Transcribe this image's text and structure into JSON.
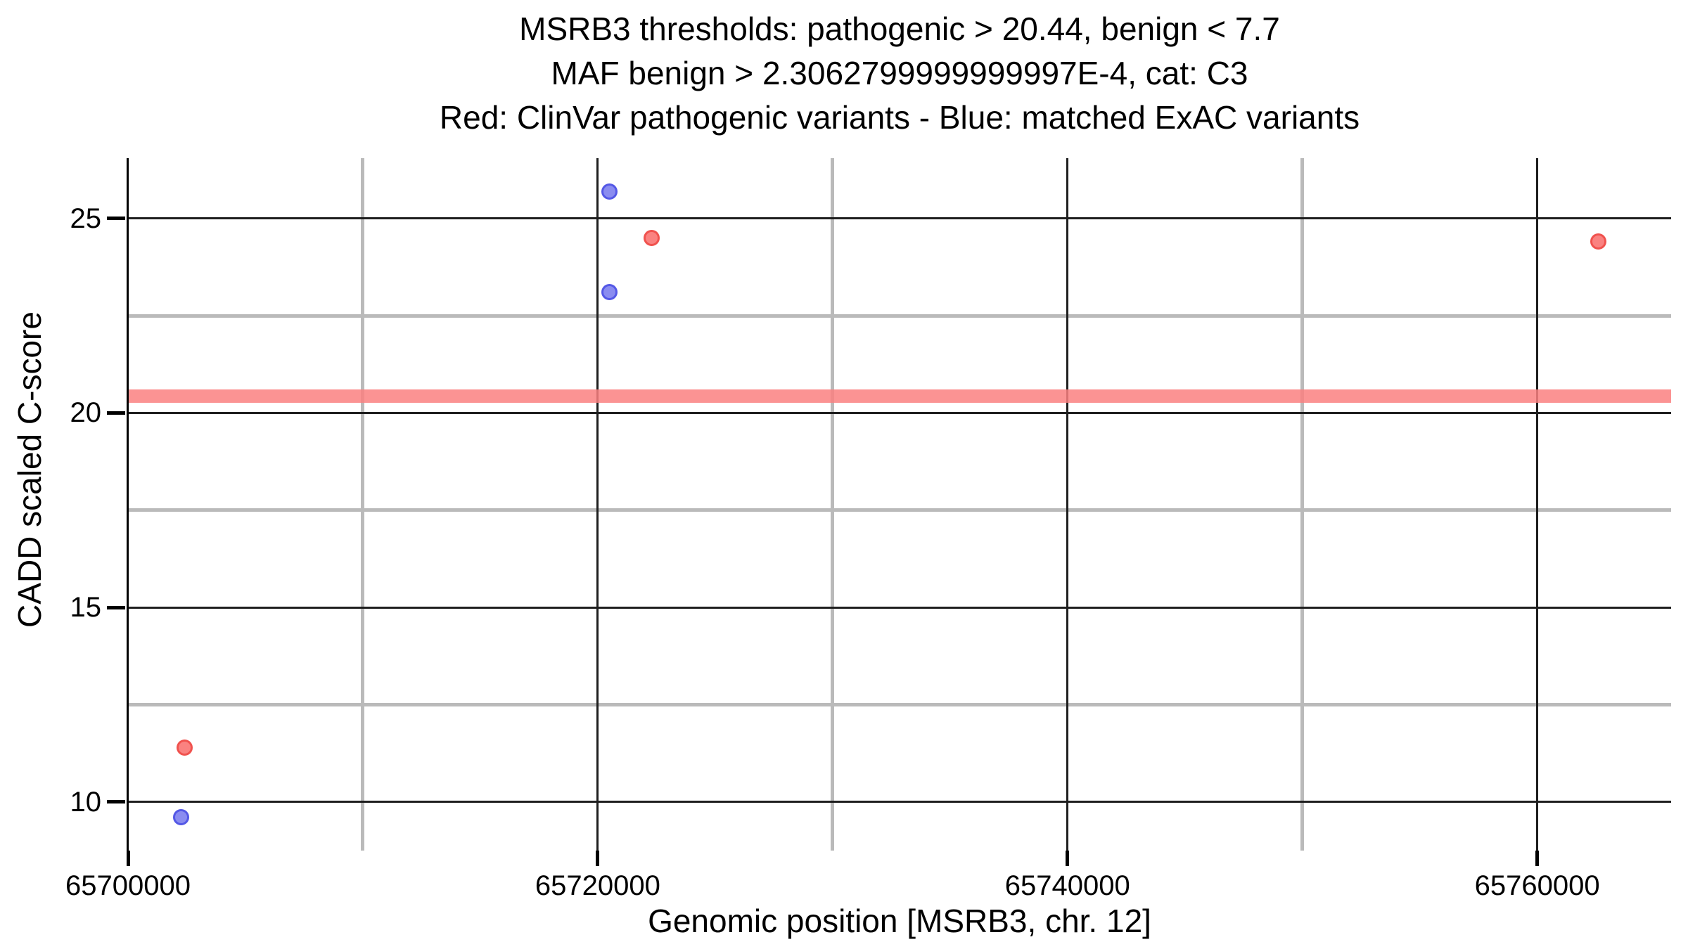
{
  "chart_data": {
    "type": "scatter",
    "title_lines": [
      "MSRB3 thresholds: pathogenic > 20.44, benign < 7.7",
      "MAF benign > 2.3062799999999997E-4, cat: C3",
      "Red: ClinVar pathogenic variants - Blue: matched ExAC variants"
    ],
    "xlabel": "Genomic position [MSRB3, chr. 12]",
    "ylabel": "CADD scaled C-score",
    "xlim": [
      65700000,
      65765700
    ],
    "ylim": [
      8.75,
      26.55
    ],
    "x_major_ticks": [
      65700000,
      65720000,
      65740000,
      65760000
    ],
    "x_major_tick_labels": [
      "65700000",
      "65720000",
      "65740000",
      "65760000"
    ],
    "x_minor_gridlines": [
      65710000,
      65730000,
      65750000
    ],
    "y_major_ticks": [
      10,
      15,
      20,
      25
    ],
    "y_major_tick_labels": [
      "10",
      "15",
      "20",
      "25"
    ],
    "y_minor_gridlines": [
      12.5,
      17.5,
      22.5
    ],
    "grid": {
      "major_color": "#1f1f1f",
      "minor_color": "#bababa",
      "shown": true
    },
    "threshold_line": {
      "value": 20.44,
      "meaning": "pathogenic threshold > 20.44",
      "color": "#fa8080",
      "opacity": 0.85
    },
    "legend": "encoded in title line 3 (Red = ClinVar pathogenic, Blue = matched ExAC)",
    "background": "#ffffff",
    "series": [
      {
        "name": "ClinVar pathogenic variants",
        "color_fill": "#fa8280",
        "color_stroke": "#f0524e",
        "points": [
          {
            "x": 65702400,
            "y": 11.4
          },
          {
            "x": 65722300,
            "y": 24.5
          },
          {
            "x": 65762600,
            "y": 24.4
          }
        ]
      },
      {
        "name": "matched ExAC variants",
        "color_fill": "#8a8cf0",
        "color_stroke": "#5458e6",
        "points": [
          {
            "x": 65702250,
            "y": 9.6
          },
          {
            "x": 65720500,
            "y": 25.7
          },
          {
            "x": 65720500,
            "y": 23.1
          }
        ]
      }
    ]
  }
}
